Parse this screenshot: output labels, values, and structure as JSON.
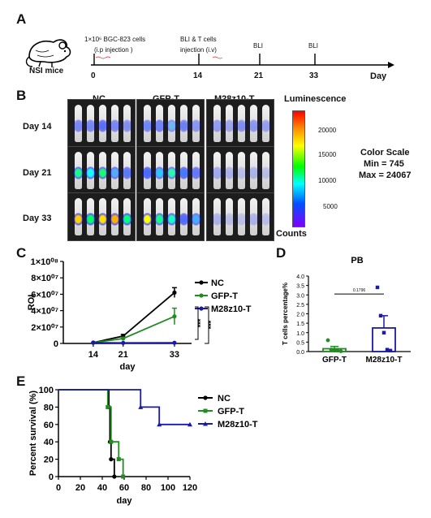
{
  "panels": {
    "a": "A",
    "b": "B",
    "c": "C",
    "d": "D",
    "e": "E"
  },
  "timeline": {
    "mouse_label": "NSI mice",
    "events": [
      {
        "label_line1": "1×10⁶ BGC-823 cells",
        "label_line2": "(i.p injection )",
        "day": "0"
      },
      {
        "label_line1": "BLI & T cells",
        "label_line2": "injection (i.v)",
        "day": "14"
      },
      {
        "label_line1": "BLI",
        "label_line2": "",
        "day": "21"
      },
      {
        "label_line1": "BLI",
        "label_line2": "",
        "day": "33"
      }
    ],
    "axis_label": "Day"
  },
  "imaging": {
    "groups": [
      "NC",
      "GFP-T",
      "M28z10-T"
    ],
    "rows": [
      "Day 14",
      "Day 21",
      "Day 33"
    ],
    "colorbar_title": "Luminescence",
    "colorbar_ticks": [
      "20000",
      "15000",
      "10000",
      "5000"
    ],
    "colorbar_units": "Counts",
    "color_scale": {
      "title": "Color Scale",
      "min": "Min = 745",
      "max": "Max = 24067"
    }
  },
  "chart_data": [
    {
      "type": "line",
      "title": "",
      "xlabel": "day",
      "ylabel": "ROI",
      "x": [
        14,
        21,
        33
      ],
      "x_tick_labels": [
        "14",
        "21",
        "33"
      ],
      "y_tick_labels": [
        "0",
        "2×10⁰⁷",
        "4×10⁰⁷",
        "6×10⁰⁷",
        "8×10⁰⁷",
        "1×10⁰⁸"
      ],
      "ylim": [
        0,
        100000000
      ],
      "series": [
        {
          "name": "NC",
          "color": "#000000",
          "values": [
            1000000,
            9000000,
            62000000
          ],
          "errors": [
            0,
            2000000,
            6000000
          ]
        },
        {
          "name": "GFP-T",
          "color": "#228b22",
          "values": [
            1000000,
            6000000,
            33000000
          ],
          "errors": [
            0,
            1500000,
            10000000
          ]
        },
        {
          "name": "M28z10-T",
          "color": "#1a1aa6",
          "values": [
            1000000,
            700000,
            800000
          ],
          "errors": [
            0,
            0,
            0
          ]
        }
      ],
      "annotations": [
        "***",
        "***"
      ],
      "legend_position": "right"
    },
    {
      "type": "bar",
      "title": "PB",
      "ylabel": "T cells percentage%",
      "categories": [
        "GFP-T",
        "M28z10-T"
      ],
      "values": [
        0.15,
        1.25
      ],
      "errors": [
        0.12,
        0.65
      ],
      "points": [
        [
          0.6,
          0.1,
          0.05,
          0.05,
          0.02
        ],
        [
          3.4,
          1.9,
          1.0,
          0.1,
          0.05
        ]
      ],
      "colors": [
        "#228b22",
        "#1a1aa6"
      ],
      "y_tick_labels": [
        "0.0",
        "0.5",
        "1.0",
        "1.5",
        "2.0",
        "2.5",
        "3.0",
        "3.5",
        "4.0"
      ],
      "ylim": [
        0,
        4
      ],
      "p_value": "0.1796"
    },
    {
      "type": "line",
      "title": "",
      "xlabel": "day",
      "ylabel": "Percent survival (%)",
      "x_tick_labels": [
        "0",
        "20",
        "40",
        "60",
        "80",
        "100",
        "120"
      ],
      "y_tick_labels": [
        "0",
        "20",
        "40",
        "60",
        "80",
        "100"
      ],
      "xlim": [
        0,
        120
      ],
      "ylim": [
        0,
        100
      ],
      "series": [
        {
          "name": "NC",
          "color": "#000000",
          "marker": "circle",
          "steps": [
            [
              0,
              100
            ],
            [
              46,
              100
            ],
            [
              46,
              80
            ],
            [
              47,
              80
            ],
            [
              47,
              40
            ],
            [
              48,
              40
            ],
            [
              48,
              20
            ],
            [
              51,
              20
            ],
            [
              51,
              0
            ]
          ]
        },
        {
          "name": "GFP-T",
          "color": "#228b22",
          "marker": "square",
          "steps": [
            [
              0,
              100
            ],
            [
              45,
              100
            ],
            [
              45,
              80
            ],
            [
              48,
              80
            ],
            [
              48,
              40
            ],
            [
              55,
              40
            ],
            [
              55,
              20
            ],
            [
              59,
              20
            ],
            [
              59,
              0
            ]
          ]
        },
        {
          "name": "M28z10-T",
          "color": "#1a1aa6",
          "marker": "triangle",
          "steps": [
            [
              0,
              100
            ],
            [
              75,
              100
            ],
            [
              75,
              80
            ],
            [
              92,
              80
            ],
            [
              92,
              60
            ],
            [
              120,
              60
            ]
          ]
        }
      ],
      "legend_position": "right"
    }
  ]
}
